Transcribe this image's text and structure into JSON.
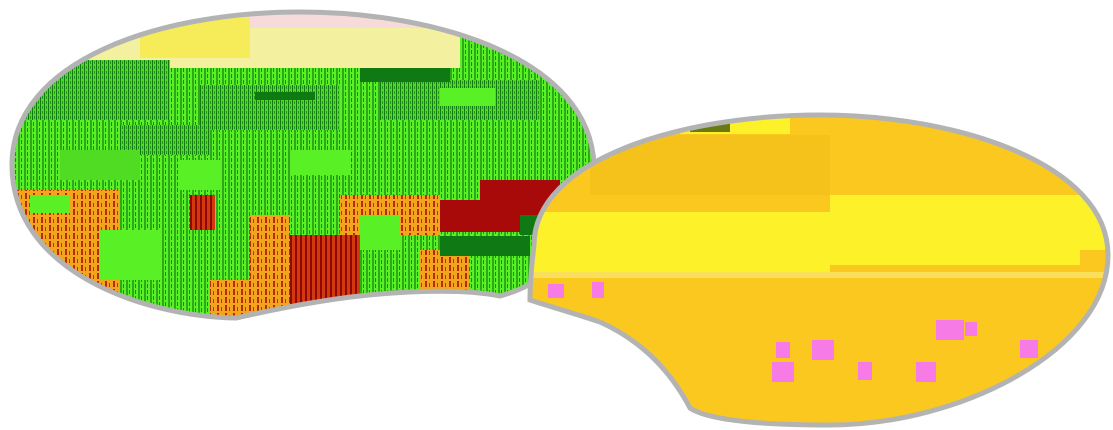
{
  "views": [
    {
      "kind": "pixel-map-lens",
      "palette": {
        "bright_green": "#59f026",
        "mid_green": "#35c21f",
        "dark_green": "#0f7a14",
        "deep_red": "#a80a0a",
        "orange": "#f2a51c",
        "pale_yellow": "#f3f0a0",
        "pale_pink": "#f7dada",
        "frame_gray": "#b3b3b3"
      }
    },
    {
      "kind": "pixel-map-lens",
      "palette": {
        "gold": "#fbc81f",
        "amber": "#f5c21c",
        "yellow": "#fdf22a",
        "pink": "#f67be6",
        "olive": "#6a7a10",
        "frame_gray": "#b3b3b3"
      }
    }
  ]
}
